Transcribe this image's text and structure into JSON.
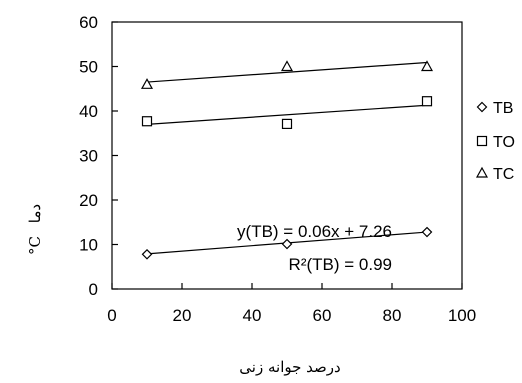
{
  "chart_data": {
    "type": "scatter",
    "xlabel": "درصد جوانه زنی",
    "ylabel_text": "دما",
    "ylabel_unit": "°C",
    "xlim": [
      0,
      100
    ],
    "ylim": [
      0,
      60
    ],
    "x_ticks": [
      "0",
      "20",
      "40",
      "60",
      "80",
      "100"
    ],
    "y_ticks": [
      "0",
      "10",
      "20",
      "30",
      "40",
      "50",
      "60"
    ],
    "grid": false,
    "legend_position": "right",
    "series": [
      {
        "name": "TB",
        "marker": "diamond",
        "x": [
          10,
          50,
          90
        ],
        "y": [
          7.8,
          10.1,
          12.8
        ],
        "trend": {
          "x": [
            10,
            90
          ],
          "y": [
            7.9,
            12.8
          ]
        }
      },
      {
        "name": "TO",
        "marker": "square",
        "x": [
          10,
          50,
          90
        ],
        "y": [
          37.7,
          37.1,
          42.2
        ],
        "trend": {
          "x": [
            10,
            90
          ],
          "y": [
            37.0,
            41.3
          ]
        }
      },
      {
        "name": "TC",
        "marker": "triangle",
        "x": [
          10,
          50,
          90
        ],
        "y": [
          46.0,
          50.0,
          50.0
        ],
        "trend": {
          "x": [
            10,
            90
          ],
          "y": [
            46.5,
            50.9
          ]
        }
      }
    ],
    "annotations": [
      "y(TB) = 0.06x + 7.26",
      "R²(TB) = 0.99"
    ]
  }
}
